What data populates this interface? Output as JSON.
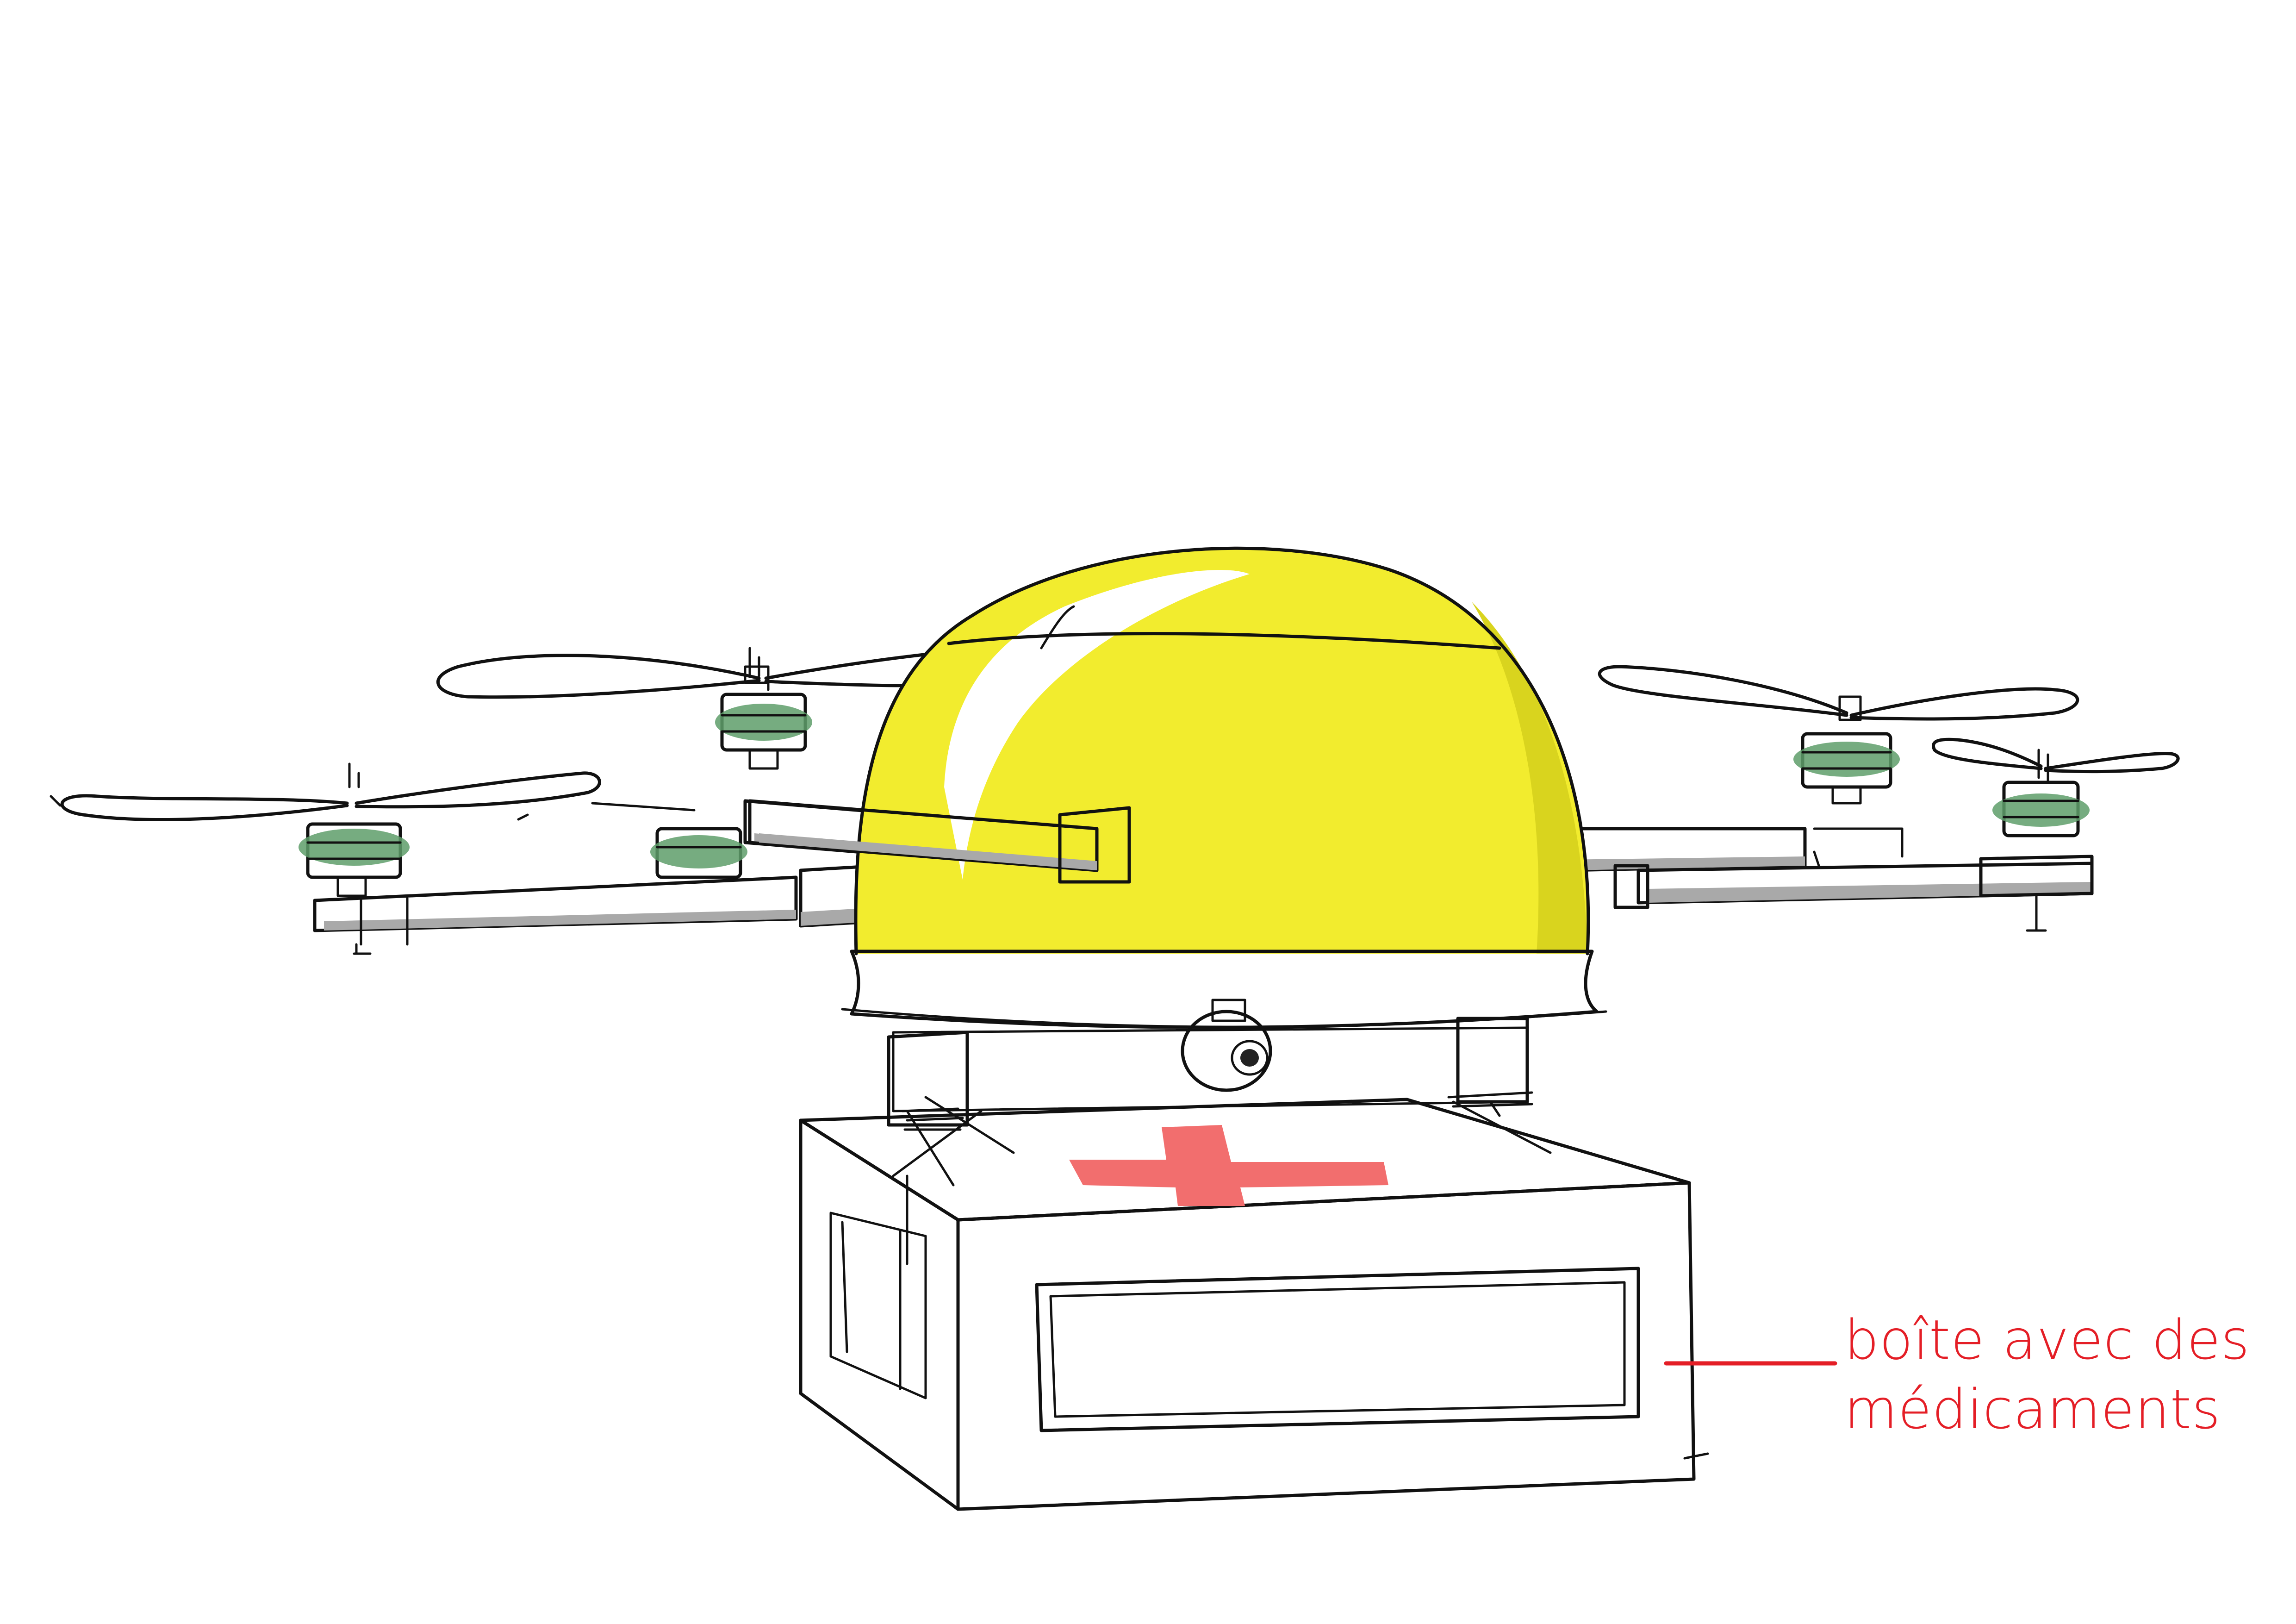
{
  "annotation": {
    "line1": "boîte avec des",
    "line2": "médicaments"
  },
  "colors": {
    "dome_yellow": "#F2EC2E",
    "dome_shadow": "#D9D41E",
    "skirt_black": "#262626",
    "arm_grey": "#E4E4E4",
    "arm_shadow": "#A9A9A9",
    "box_grey": "#A8A8A8",
    "box_panel_dark": "#767676",
    "box_top": "#FFFFFF",
    "cross_red": "#F26E6E",
    "motor_green": "#5E9E6A",
    "annotation_red": "#E41E26",
    "ink": "#111111",
    "background": "#FFFFFF"
  },
  "icons": {
    "red_cross": "red-cross-icon",
    "camera": "camera-icon"
  }
}
